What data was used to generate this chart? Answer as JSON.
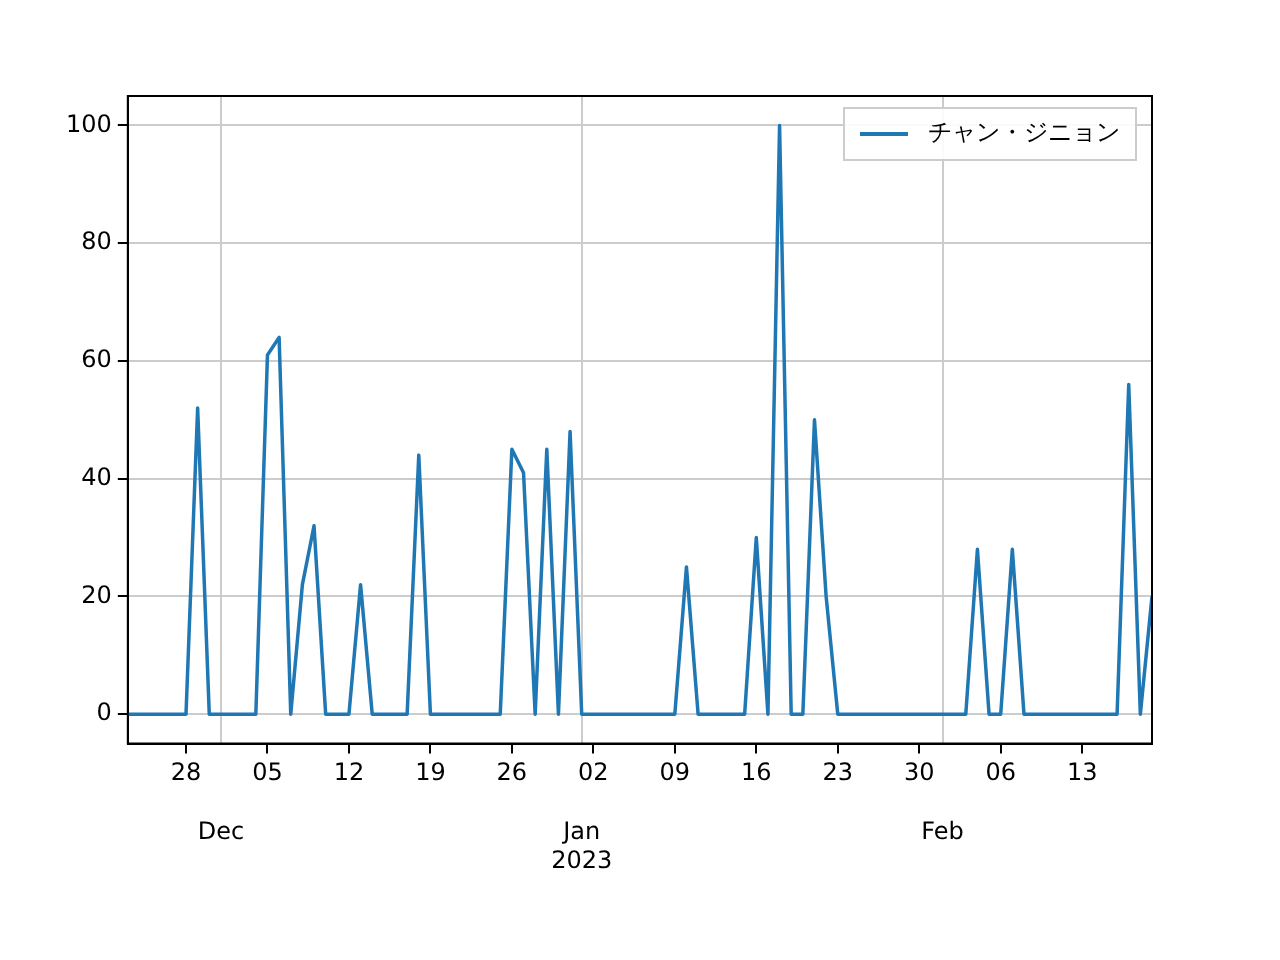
{
  "chart_data": {
    "type": "line",
    "x": [
      "2022-11-23",
      "2022-11-24",
      "2022-11-25",
      "2022-11-26",
      "2022-11-27",
      "2022-11-28",
      "2022-11-29",
      "2022-11-30",
      "2022-12-01",
      "2022-12-02",
      "2022-12-03",
      "2022-12-04",
      "2022-12-05",
      "2022-12-06",
      "2022-12-07",
      "2022-12-08",
      "2022-12-09",
      "2022-12-10",
      "2022-12-11",
      "2022-12-12",
      "2022-12-13",
      "2022-12-14",
      "2022-12-15",
      "2022-12-16",
      "2022-12-17",
      "2022-12-18",
      "2022-12-19",
      "2022-12-20",
      "2022-12-21",
      "2022-12-22",
      "2022-12-23",
      "2022-12-24",
      "2022-12-25",
      "2022-12-26",
      "2022-12-27",
      "2022-12-28",
      "2022-12-29",
      "2022-12-30",
      "2022-12-31",
      "2023-01-01",
      "2023-01-02",
      "2023-01-03",
      "2023-01-04",
      "2023-01-05",
      "2023-01-06",
      "2023-01-07",
      "2023-01-08",
      "2023-01-09",
      "2023-01-10",
      "2023-01-11",
      "2023-01-12",
      "2023-01-13",
      "2023-01-14",
      "2023-01-15",
      "2023-01-16",
      "2023-01-17",
      "2023-01-18",
      "2023-01-19",
      "2023-01-20",
      "2023-01-21",
      "2023-01-22",
      "2023-01-23",
      "2023-01-24",
      "2023-01-25",
      "2023-01-26",
      "2023-01-27",
      "2023-01-28",
      "2023-01-29",
      "2023-01-30",
      "2023-01-31",
      "2023-02-01",
      "2023-02-02",
      "2023-02-03",
      "2023-02-04",
      "2023-02-05",
      "2023-02-06",
      "2023-02-07",
      "2023-02-08",
      "2023-02-09",
      "2023-02-10",
      "2023-02-11",
      "2023-02-12",
      "2023-02-13",
      "2023-02-14",
      "2023-02-15",
      "2023-02-16",
      "2023-02-17",
      "2023-02-18",
      "2023-02-19"
    ],
    "series": [
      {
        "name": "チャン・ジニョン",
        "color": "#1f77b4",
        "values": [
          0,
          0,
          0,
          0,
          0,
          0,
          52,
          0,
          0,
          0,
          0,
          0,
          61,
          64,
          0,
          22,
          32,
          0,
          0,
          0,
          22,
          0,
          0,
          0,
          0,
          44,
          0,
          0,
          0,
          0,
          0,
          0,
          0,
          45,
          41,
          0,
          45,
          0,
          48,
          0,
          0,
          0,
          0,
          0,
          0,
          0,
          0,
          0,
          25,
          0,
          0,
          0,
          0,
          0,
          30,
          0,
          100,
          0,
          0,
          50,
          20,
          0,
          0,
          0,
          0,
          0,
          0,
          0,
          0,
          0,
          0,
          0,
          0,
          28,
          0,
          0,
          28,
          0,
          0,
          0,
          0,
          0,
          0,
          0,
          0,
          0,
          56,
          0,
          20
        ]
      }
    ],
    "xlim": [
      "2022-11-23",
      "2023-02-19"
    ],
    "xticks": [
      {
        "value": "2022-11-28",
        "label": "28"
      },
      {
        "value": "2022-12-05",
        "label": "05"
      },
      {
        "value": "2022-12-12",
        "label": "12"
      },
      {
        "value": "2022-12-19",
        "label": "19"
      },
      {
        "value": "2022-12-26",
        "label": "26"
      },
      {
        "value": "2023-01-02",
        "label": "02"
      },
      {
        "value": "2023-01-09",
        "label": "09"
      },
      {
        "value": "2023-01-16",
        "label": "16"
      },
      {
        "value": "2023-01-23",
        "label": "23"
      },
      {
        "value": "2023-01-30",
        "label": "30"
      },
      {
        "value": "2023-02-06",
        "label": "06"
      },
      {
        "value": "2023-02-13",
        "label": "13"
      }
    ],
    "x2lim": [
      "2022-11-23",
      "2023-02-19"
    ],
    "x2ticks": [
      {
        "value": "2022-12-01",
        "label": "Dec"
      },
      {
        "value": "2023-01-01",
        "label": "Jan\n2023"
      },
      {
        "value": "2023-02-01",
        "label": "Feb"
      }
    ],
    "ylim": [
      -5,
      105
    ],
    "yticks": [
      0,
      20,
      40,
      60,
      80,
      100
    ],
    "grid": true,
    "legend": "top right",
    "marker": "none",
    "line_style": "solid"
  }
}
